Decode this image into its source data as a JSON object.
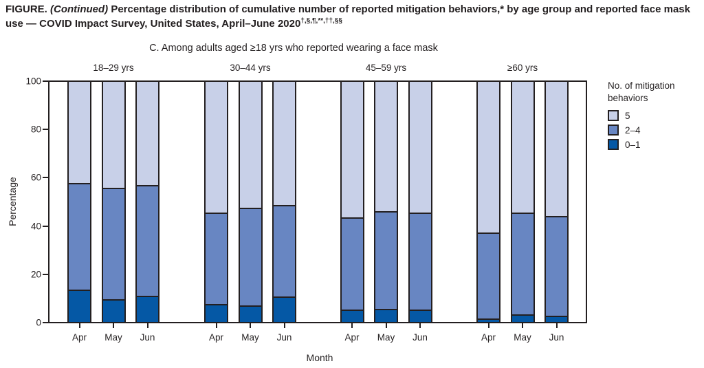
{
  "figure": {
    "title_bold_prefix": "FIGURE. ",
    "title_italic": "(Continued)",
    "title_rest_line1": " Percentage distribution of cumulative number of reported mitigation behaviors,* by age group and reported face mask",
    "title_line2": "use — COVID Impact Survey, United States, April–June 2020",
    "title_superscripts": "†,§,¶,**,††,§§",
    "panel_title": "C. Among adults aged ≥18 yrs who reported wearing a face mask"
  },
  "legend": {
    "title_line1": "No. of mitigation",
    "title_line2": "behaviors",
    "entries": [
      {
        "label": "5",
        "color": "#c8d0e8"
      },
      {
        "label": "2–4",
        "color": "#6886c2"
      },
      {
        "label": "0–1",
        "color": "#0558a5"
      }
    ]
  },
  "chart_data": {
    "type": "bar",
    "stacked": true,
    "title": "C. Among adults aged ≥18 yrs who reported wearing a face mask",
    "xlabel": "Month",
    "ylabel": "Percentage",
    "ylim": [
      0,
      100
    ],
    "yticks": [
      0,
      20,
      40,
      60,
      80,
      100
    ],
    "legend_title": "No. of mitigation behaviors",
    "legend_position": "right",
    "grid": false,
    "stack_order_bottom_to_top": [
      "0–1",
      "2–4",
      "5"
    ],
    "colors": {
      "0–1": "#0558a5",
      "2–4": "#6886c2",
      "5": "#c8d0e8"
    },
    "outline_color": "#231f20",
    "groups": [
      {
        "label": "18–29 yrs",
        "months": [
          "Apr",
          "May",
          "Jun"
        ],
        "series": [
          {
            "name": "0–1",
            "values": [
              13,
              9,
              10.5
            ]
          },
          {
            "name": "2–4",
            "values": [
              44.5,
              46.5,
              46
            ]
          },
          {
            "name": "5",
            "values": [
              42.5,
              44.5,
              43.5
            ]
          }
        ]
      },
      {
        "label": "30–44 yrs",
        "months": [
          "Apr",
          "May",
          "Jun"
        ],
        "series": [
          {
            "name": "0–1",
            "values": [
              7,
              6.5,
              10
            ]
          },
          {
            "name": "2–4",
            "values": [
              38,
              40.5,
              38
            ]
          },
          {
            "name": "5",
            "values": [
              55,
              53,
              52
            ]
          }
        ]
      },
      {
        "label": "45–59 yrs",
        "months": [
          "Apr",
          "May",
          "Jun"
        ],
        "series": [
          {
            "name": "0–1",
            "values": [
              4.5,
              5,
              4.5
            ]
          },
          {
            "name": "2–4",
            "values": [
              38.5,
              40.5,
              40.5
            ]
          },
          {
            "name": "5",
            "values": [
              57,
              54.5,
              55
            ]
          }
        ]
      },
      {
        "label": "≥60 yrs",
        "months": [
          "Apr",
          "May",
          "Jun"
        ],
        "series": [
          {
            "name": "0–1",
            "values": [
              1,
              2.5,
              2
            ]
          },
          {
            "name": "2–4",
            "values": [
              35.5,
              42.5,
              41.5
            ]
          },
          {
            "name": "5",
            "values": [
              63.5,
              55,
              56.5
            ]
          }
        ]
      }
    ]
  }
}
